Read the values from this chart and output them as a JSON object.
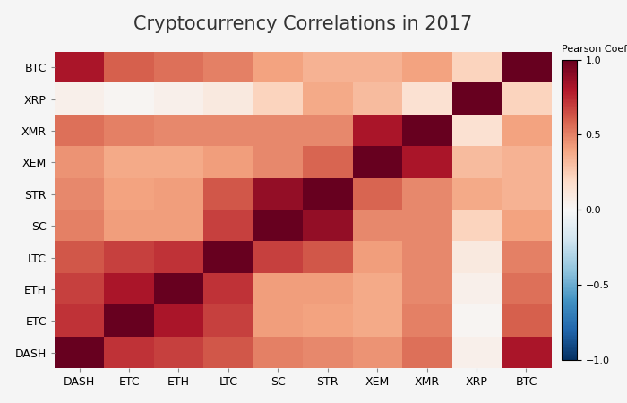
{
  "title": "Cryptocurrency Correlations in 2017",
  "colorbar_label": "Pearson Coefficient",
  "row_labels": [
    "BTC",
    "XRP",
    "XMR",
    "XEM",
    "STR",
    "SC",
    "LTC",
    "ETH",
    "ETC",
    "DASH"
  ],
  "col_labels": [
    "DASH",
    "ETC",
    "ETH",
    "LTC",
    "SC",
    "STR",
    "XEM",
    "XMR",
    "XRP",
    "BTC"
  ],
  "corr_by_coin": {
    "coins": [
      "DASH",
      "ETC",
      "ETH",
      "LTC",
      "SC",
      "STR",
      "XEM",
      "XMR",
      "XRP",
      "BTC"
    ],
    "matrix": [
      [
        1.0,
        0.72,
        0.68,
        0.62,
        0.5,
        0.48,
        0.45,
        0.55,
        0.05,
        0.82
      ],
      [
        0.72,
        1.0,
        0.82,
        0.68,
        0.42,
        0.4,
        0.38,
        0.5,
        0.02,
        0.6
      ],
      [
        0.68,
        0.82,
        1.0,
        0.72,
        0.42,
        0.42,
        0.38,
        0.48,
        0.05,
        0.55
      ],
      [
        0.62,
        0.68,
        0.72,
        1.0,
        0.68,
        0.62,
        0.42,
        0.48,
        0.1,
        0.5
      ],
      [
        0.5,
        0.42,
        0.42,
        0.68,
        1.0,
        0.88,
        0.48,
        0.48,
        0.22,
        0.4
      ],
      [
        0.48,
        0.4,
        0.42,
        0.62,
        0.88,
        1.0,
        0.58,
        0.48,
        0.38,
        0.35
      ],
      [
        0.45,
        0.38,
        0.38,
        0.42,
        0.48,
        0.58,
        1.0,
        0.82,
        0.32,
        0.35
      ],
      [
        0.55,
        0.5,
        0.48,
        0.48,
        0.48,
        0.48,
        0.82,
        1.0,
        0.15,
        0.4
      ],
      [
        0.05,
        0.02,
        0.05,
        0.1,
        0.22,
        0.38,
        0.32,
        0.15,
        1.0,
        0.22
      ],
      [
        0.82,
        0.6,
        0.55,
        0.5,
        0.4,
        0.35,
        0.35,
        0.4,
        0.22,
        1.0
      ]
    ]
  },
  "background_color": "#f5f5f5",
  "title_fontsize": 15,
  "label_fontsize": 9,
  "vmin": -1,
  "vmax": 1,
  "colormap": "RdBu_r"
}
